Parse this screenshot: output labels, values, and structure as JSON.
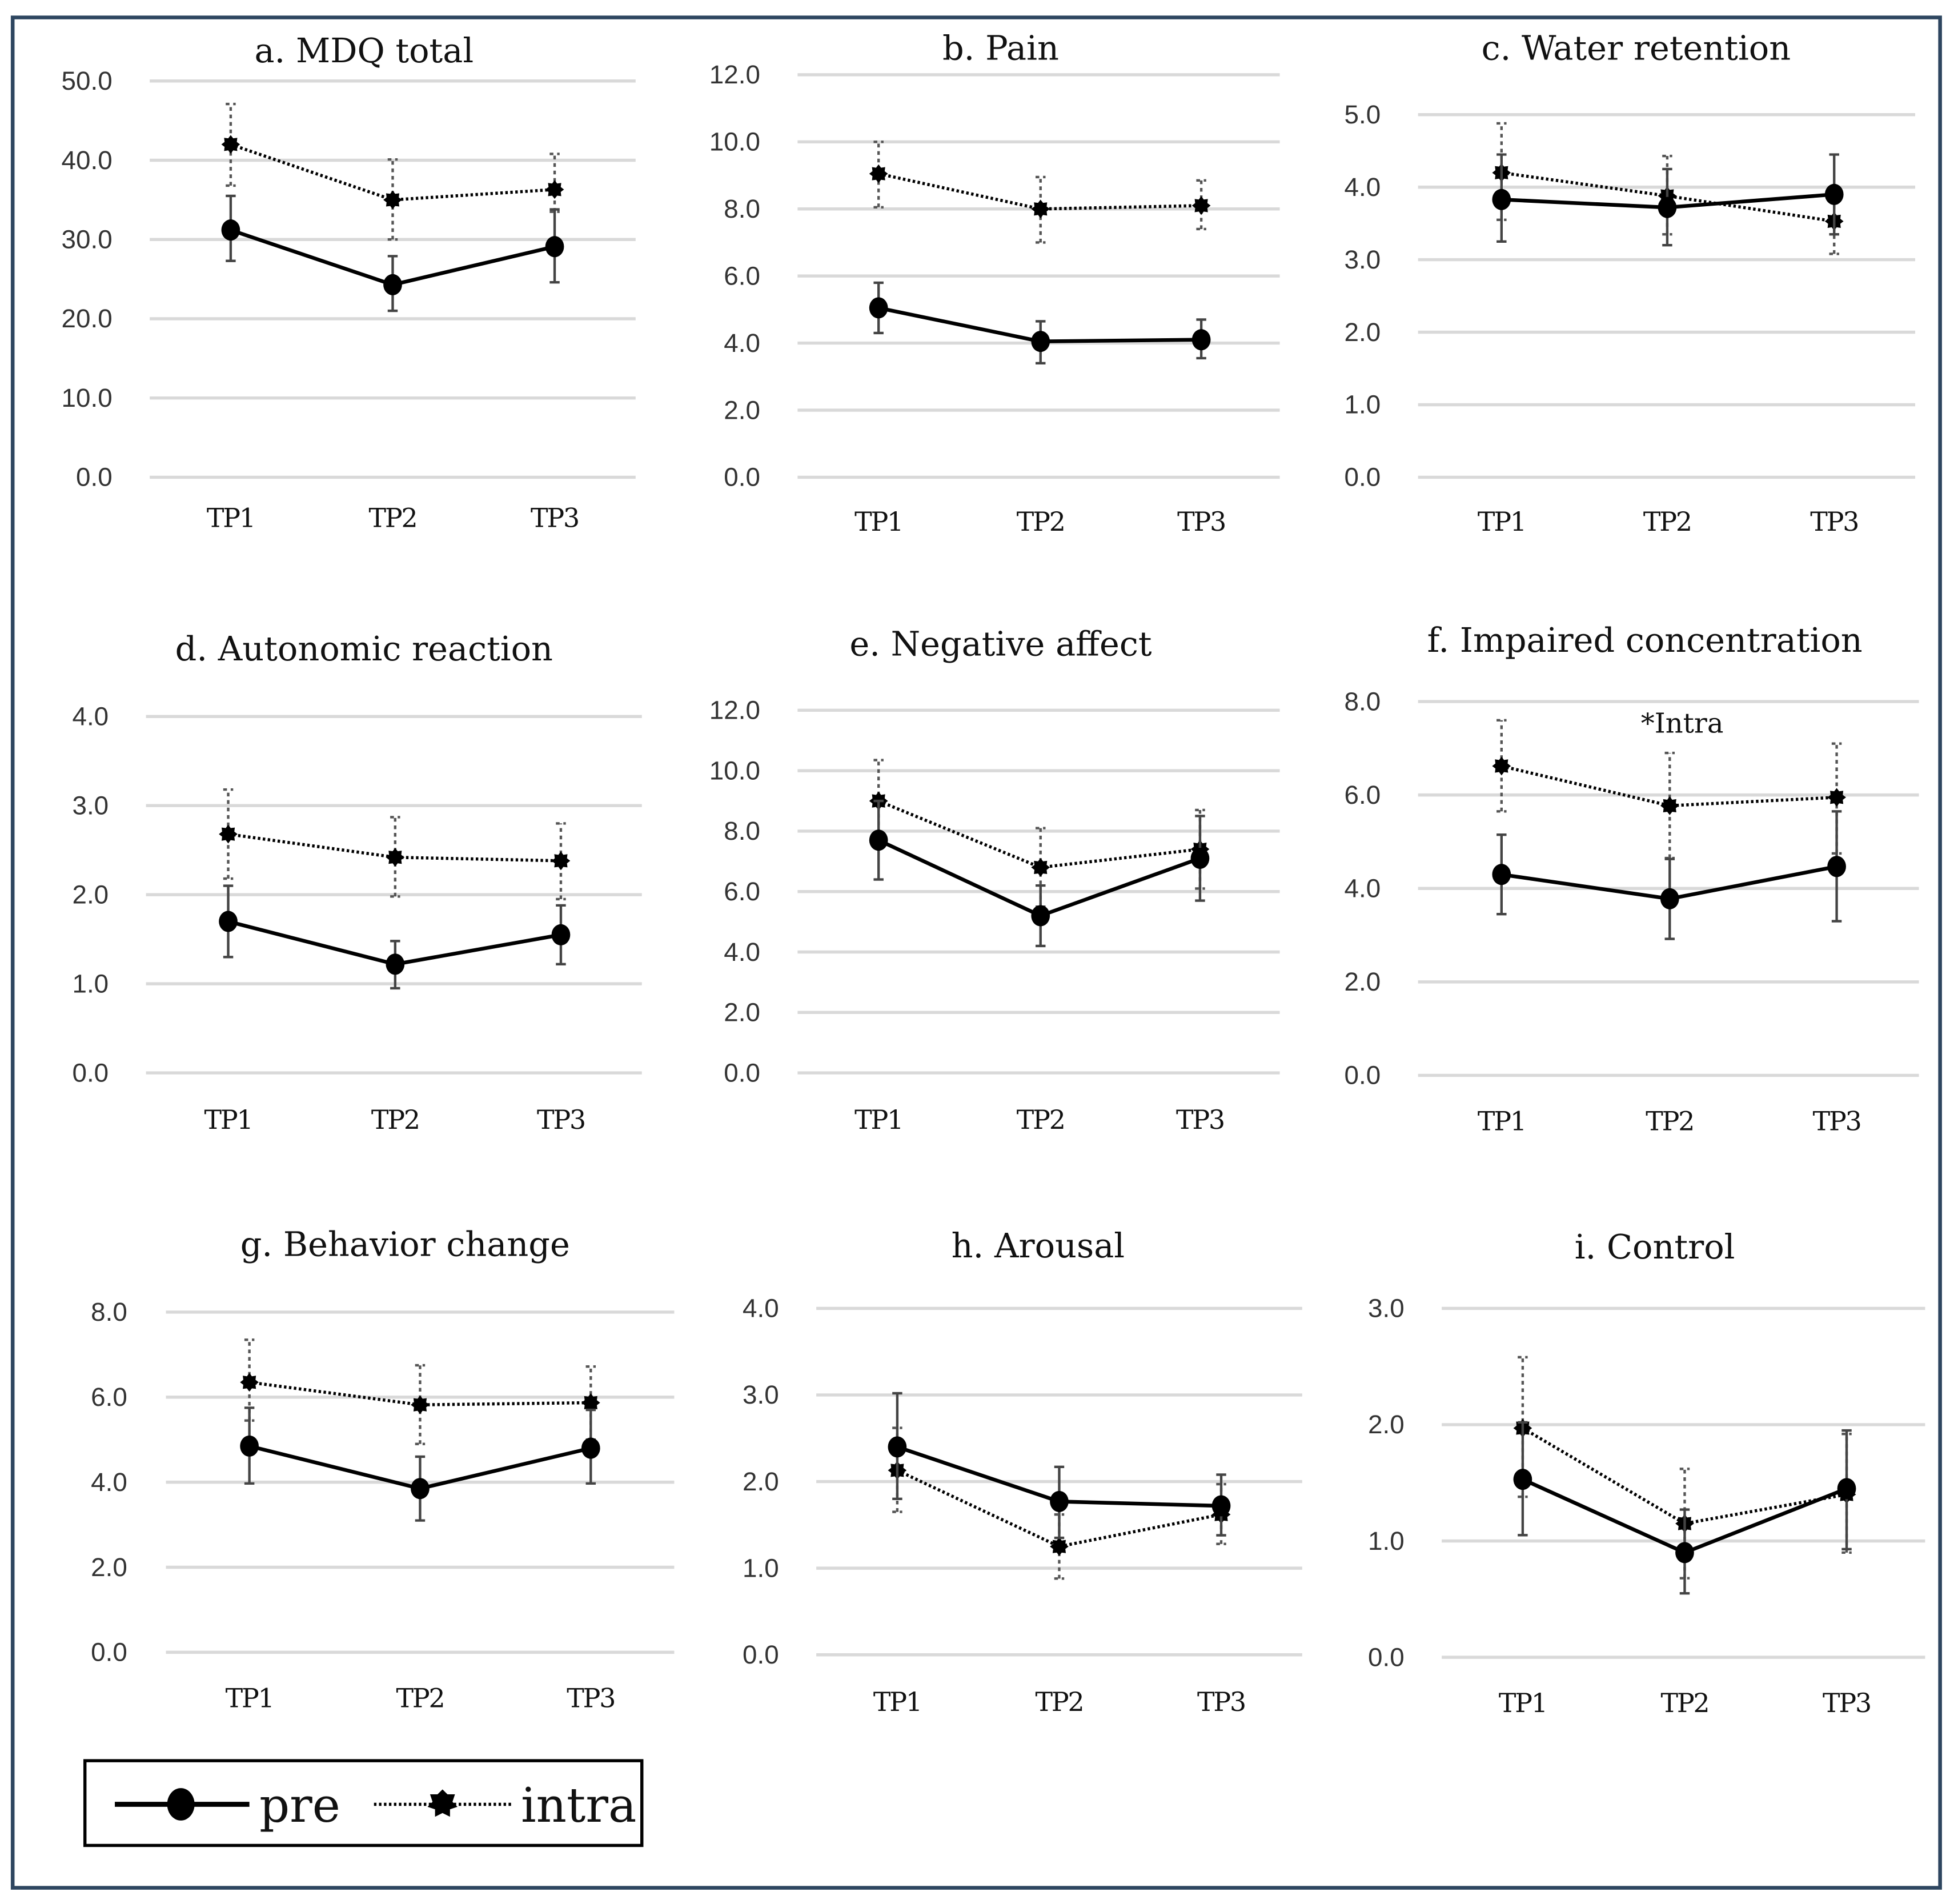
{
  "colors": {
    "border": "#2e4660",
    "grid": "#d9d9d9",
    "series": "#000000",
    "errorbar": "#555555"
  },
  "legend": {
    "pre": "pre",
    "intra": "intra"
  },
  "chart_data": [
    {
      "type": "line",
      "title": "a. MDQ total",
      "categories": [
        "TP1",
        "TP2",
        "TP3"
      ],
      "ylim": [
        0,
        50
      ],
      "ticks": [
        "0.0",
        "10.0",
        "20.0",
        "30.0",
        "40.0",
        "50.0"
      ],
      "grid": true,
      "series": [
        {
          "name": "pre",
          "values": [
            31.2,
            24.3,
            29.1
          ],
          "err_low": [
            27.3,
            21.0,
            24.6
          ],
          "err_high": [
            35.5,
            27.9,
            33.8
          ]
        },
        {
          "name": "intra",
          "values": [
            42.0,
            35.0,
            36.3
          ],
          "err_low": [
            36.8,
            30.0,
            33.5
          ],
          "err_high": [
            47.1,
            40.1,
            40.8
          ]
        }
      ]
    },
    {
      "type": "line",
      "title": "b. Pain",
      "categories": [
        "TP1",
        "TP2",
        "TP3"
      ],
      "ylim": [
        0,
        12
      ],
      "ticks": [
        "0.0",
        "2.0",
        "4.0",
        "6.0",
        "8.0",
        "10.0",
        "12.0"
      ],
      "grid": true,
      "series": [
        {
          "name": "pre",
          "values": [
            5.05,
            4.05,
            4.1
          ],
          "err_low": [
            4.3,
            3.4,
            3.55
          ],
          "err_high": [
            5.8,
            4.65,
            4.7
          ]
        },
        {
          "name": "intra",
          "values": [
            9.05,
            8.0,
            8.1
          ],
          "err_low": [
            8.05,
            7.0,
            7.4
          ],
          "err_high": [
            10.0,
            8.95,
            8.85
          ]
        }
      ]
    },
    {
      "type": "line",
      "title": "c. Water retention",
      "categories": [
        "TP1",
        "TP2",
        "TP3"
      ],
      "ylim": [
        0,
        5
      ],
      "ticks": [
        "0.0",
        "1.0",
        "2.0",
        "3.0",
        "4.0",
        "5.0"
      ],
      "grid": true,
      "series": [
        {
          "name": "pre",
          "values": [
            3.83,
            3.72,
            3.9
          ],
          "err_low": [
            3.25,
            3.2,
            3.35
          ],
          "err_high": [
            4.45,
            4.25,
            4.45
          ]
        },
        {
          "name": "intra",
          "values": [
            4.2,
            3.88,
            3.53
          ],
          "err_low": [
            3.55,
            3.35,
            3.08
          ],
          "err_high": [
            4.88,
            4.43,
            3.95
          ]
        }
      ]
    },
    {
      "type": "line",
      "title": "d. Autonomic reaction",
      "categories": [
        "TP1",
        "TP2",
        "TP3"
      ],
      "ylim": [
        0,
        4
      ],
      "ticks": [
        "0.0",
        "1.0",
        "2.0",
        "3.0",
        "4.0"
      ],
      "grid": true,
      "series": [
        {
          "name": "pre",
          "values": [
            1.7,
            1.22,
            1.55
          ],
          "err_low": [
            1.3,
            0.95,
            1.22
          ],
          "err_high": [
            2.1,
            1.48,
            1.88
          ]
        },
        {
          "name": "intra",
          "values": [
            2.68,
            2.42,
            2.38
          ],
          "err_low": [
            2.18,
            1.98,
            1.95
          ],
          "err_high": [
            3.18,
            2.87,
            2.8
          ]
        }
      ]
    },
    {
      "type": "line",
      "title": "e. Negative affect",
      "categories": [
        "TP1",
        "TP2",
        "TP3"
      ],
      "ylim": [
        0,
        12
      ],
      "ticks": [
        "0.0",
        "2.0",
        "4.0",
        "6.0",
        "8.0",
        "10.0",
        "12.0"
      ],
      "grid": true,
      "series": [
        {
          "name": "pre",
          "values": [
            7.7,
            5.2,
            7.1
          ],
          "err_low": [
            6.4,
            4.2,
            5.7
          ],
          "err_high": [
            9.0,
            6.2,
            8.5
          ]
        },
        {
          "name": "intra",
          "values": [
            9.0,
            6.8,
            7.4
          ],
          "err_low": [
            7.7,
            5.5,
            6.1
          ],
          "err_high": [
            10.35,
            8.1,
            8.7
          ]
        }
      ]
    },
    {
      "type": "line",
      "title": "f. Impaired concentration",
      "annotation": "*Intra",
      "categories": [
        "TP1",
        "TP2",
        "TP3"
      ],
      "ylim": [
        0,
        8
      ],
      "ticks": [
        "0.0",
        "2.0",
        "4.0",
        "6.0",
        "8.0"
      ],
      "grid": true,
      "series": [
        {
          "name": "pre",
          "values": [
            4.3,
            3.78,
            4.47
          ],
          "err_low": [
            3.45,
            2.92,
            3.3
          ],
          "err_high": [
            5.15,
            4.63,
            5.65
          ]
        },
        {
          "name": "intra",
          "values": [
            6.62,
            5.77,
            5.95
          ],
          "err_low": [
            5.65,
            4.65,
            4.75
          ],
          "err_high": [
            7.6,
            6.9,
            7.1
          ]
        }
      ]
    },
    {
      "type": "line",
      "title": "g. Behavior change",
      "categories": [
        "TP1",
        "TP2",
        "TP3"
      ],
      "ylim": [
        0,
        8
      ],
      "ticks": [
        "0.0",
        "2.0",
        "4.0",
        "6.0",
        "8.0"
      ],
      "grid": true,
      "series": [
        {
          "name": "pre",
          "values": [
            4.85,
            3.85,
            4.8
          ],
          "err_low": [
            3.97,
            3.1,
            3.97
          ],
          "err_high": [
            5.75,
            4.6,
            5.7
          ]
        },
        {
          "name": "intra",
          "values": [
            6.35,
            5.82,
            5.87
          ],
          "err_low": [
            5.45,
            4.9,
            5.0
          ],
          "err_high": [
            7.35,
            6.75,
            6.72
          ]
        }
      ]
    },
    {
      "type": "line",
      "title": "h. Arousal",
      "categories": [
        "TP1",
        "TP2",
        "TP3"
      ],
      "ylim": [
        0,
        4
      ],
      "ticks": [
        "0.0",
        "1.0",
        "2.0",
        "3.0",
        "4.0"
      ],
      "grid": true,
      "series": [
        {
          "name": "pre",
          "values": [
            2.4,
            1.77,
            1.72
          ],
          "err_low": [
            1.8,
            1.35,
            1.38
          ],
          "err_high": [
            3.02,
            2.17,
            2.08
          ]
        },
        {
          "name": "intra",
          "values": [
            2.13,
            1.25,
            1.62
          ],
          "err_low": [
            1.65,
            0.88,
            1.28
          ],
          "err_high": [
            2.62,
            1.62,
            1.97
          ]
        }
      ]
    },
    {
      "type": "line",
      "title": "i. Control",
      "categories": [
        "TP1",
        "TP2",
        "TP3"
      ],
      "ylim": [
        0,
        3
      ],
      "ticks": [
        "0.0",
        "1.0",
        "2.0",
        "3.0"
      ],
      "grid": true,
      "series": [
        {
          "name": "pre",
          "values": [
            1.53,
            0.9,
            1.45
          ],
          "err_low": [
            1.05,
            0.55,
            0.93
          ],
          "err_high": [
            2.02,
            1.27,
            1.95
          ]
        },
        {
          "name": "intra",
          "values": [
            1.97,
            1.15,
            1.4
          ],
          "err_low": [
            1.38,
            0.68,
            0.9
          ],
          "err_high": [
            2.58,
            1.62,
            1.92
          ]
        }
      ]
    }
  ]
}
